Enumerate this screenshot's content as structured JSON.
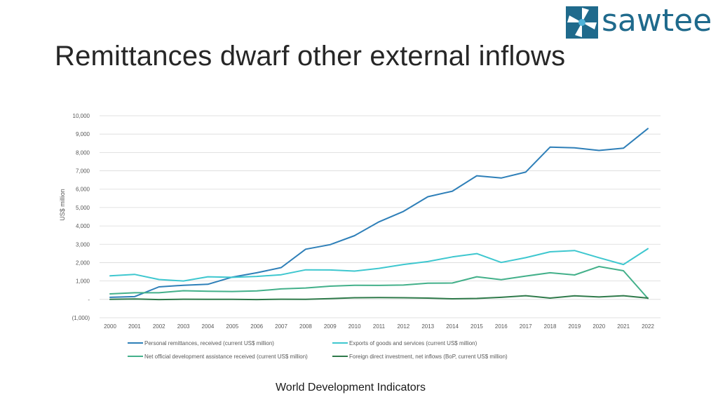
{
  "slide": {
    "title": "Remittances dwarf other external inflows",
    "source": "World Development Indicators",
    "logo_text": "sawtee"
  },
  "colors": {
    "remittances": "#2e7fb8",
    "exports": "#3ec7cf",
    "oda": "#43b08a",
    "fdi": "#2f7a4a",
    "logo": "#1f6a8c"
  },
  "chart_data": {
    "type": "line",
    "title": "",
    "xlabel": "",
    "ylabel": "US$ million",
    "ylim": [
      -1000,
      10000
    ],
    "yticks": [
      {
        "value": 10000,
        "label": "10,000"
      },
      {
        "value": 9000,
        "label": "9,000"
      },
      {
        "value": 8000,
        "label": "8,000"
      },
      {
        "value": 7000,
        "label": "7,000"
      },
      {
        "value": 6000,
        "label": "6,000"
      },
      {
        "value": 5000,
        "label": "5,000"
      },
      {
        "value": 4000,
        "label": "4,000"
      },
      {
        "value": 3000,
        "label": "3,000"
      },
      {
        "value": 2000,
        "label": "2,000"
      },
      {
        "value": 1000,
        "label": "1,000"
      },
      {
        "value": 0,
        "label": "-"
      },
      {
        "value": -1000,
        "label": "(1,000)"
      }
    ],
    "grid": true,
    "legend_position": "bottom",
    "categories": [
      "2000",
      "2001",
      "2002",
      "2003",
      "2004",
      "2005",
      "2006",
      "2007",
      "2008",
      "2009",
      "2010",
      "2011",
      "2012",
      "2013",
      "2014",
      "2015",
      "2016",
      "2017",
      "2018",
      "2019",
      "2020",
      "2021",
      "2022"
    ],
    "series": [
      {
        "name": "Personal remittances, received (current US$ million)",
        "color_key": "remittances",
        "values": [
          110,
          150,
          680,
          770,
          820,
          1210,
          1450,
          1730,
          2730,
          2980,
          3470,
          4220,
          4790,
          5590,
          5890,
          6730,
          6610,
          6930,
          8290,
          8250,
          8110,
          8230,
          9300
        ]
      },
      {
        "name": "Exports of goods and services (current US$ million)",
        "color_key": "exports",
        "values": [
          1280,
          1360,
          1080,
          1000,
          1230,
          1200,
          1250,
          1340,
          1610,
          1600,
          1540,
          1690,
          1900,
          2060,
          2310,
          2490,
          2010,
          2270,
          2590,
          2660,
          2270,
          1900,
          2760
        ]
      },
      {
        "name": "Net official development assistance received (current US$ million)",
        "color_key": "oda",
        "values": [
          300,
          360,
          360,
          470,
          440,
          430,
          460,
          570,
          620,
          720,
          770,
          760,
          780,
          880,
          890,
          1230,
          1070,
          1270,
          1450,
          1330,
          1790,
          1560,
          50
        ]
      },
      {
        "name": "Foreign direct investment, net inflows (BoP, current US$ million)",
        "color_key": "fdi",
        "values": [
          0,
          20,
          -10,
          10,
          0,
          0,
          -10,
          10,
          0,
          40,
          90,
          100,
          90,
          70,
          30,
          50,
          110,
          200,
          70,
          190,
          130,
          200,
          70
        ]
      }
    ]
  }
}
